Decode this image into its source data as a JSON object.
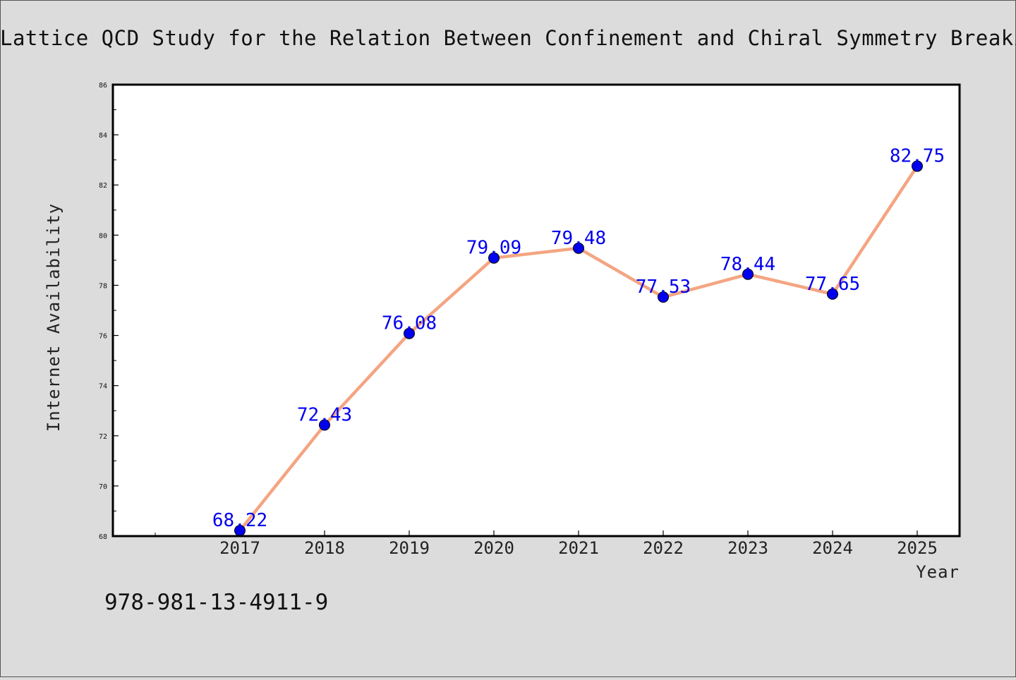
{
  "page": {
    "background_color": "#dcdcdc",
    "footer_code": "978-981-13-4911-9"
  },
  "chart_data": {
    "type": "line",
    "title": "Lattice QCD Study for the Relation Between Confinement and Chiral Symmetry Breaking",
    "xlabel": "Year",
    "ylabel": "Internet Availability",
    "categories": [
      "2017",
      "2018",
      "2019",
      "2020",
      "2021",
      "2022",
      "2023",
      "2024",
      "2025"
    ],
    "series": [
      {
        "values": [
          68.22,
          72.43,
          76.08,
          79.09,
          79.48,
          77.53,
          78.44,
          77.65,
          82.75
        ],
        "line_color": "#f4a582",
        "marker_color": "#0000ee"
      }
    ],
    "data_labels": [
      "68.22",
      "72.43",
      "76.08",
      "79.09",
      "79.48",
      "77.53",
      "78.44",
      "77.65",
      "82.75"
    ],
    "ylim": [
      68,
      86
    ],
    "y_ticks": [
      68,
      70,
      72,
      74,
      76,
      78,
      80,
      82,
      84,
      86
    ],
    "grid": false,
    "legend": "none"
  }
}
